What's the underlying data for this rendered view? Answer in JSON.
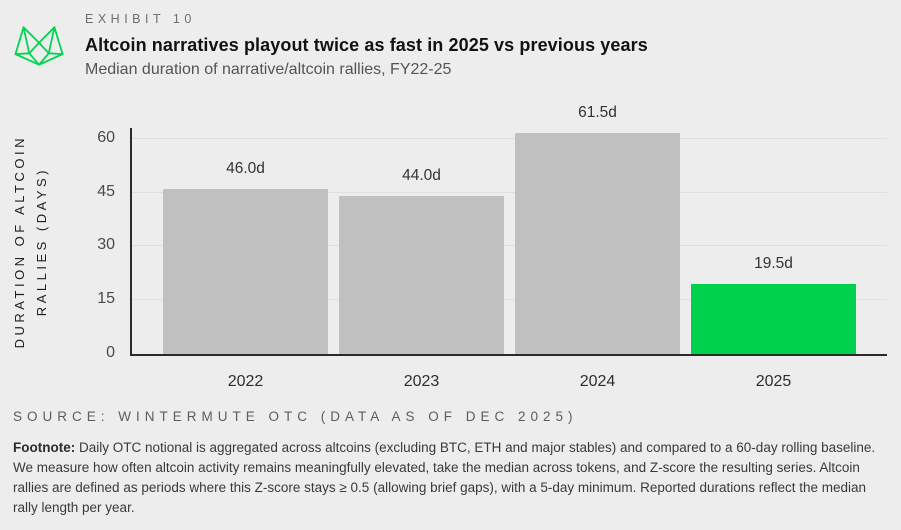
{
  "header": {
    "exhibit_label": "EXHIBIT 10",
    "title": "Altcoin narratives playout twice as fast in 2025 vs previous years",
    "subtitle": "Median duration of narrative/altcoin rallies, FY22-25"
  },
  "chart_data": {
    "type": "bar",
    "title": "Median duration of narrative/altcoin rallies, FY22-25",
    "categories": [
      "2022",
      "2023",
      "2024",
      "2025"
    ],
    "values": [
      46.0,
      44.0,
      61.5,
      19.5
    ],
    "value_labels": [
      "46.0d",
      "44.0d",
      "61.5d",
      "19.5d"
    ],
    "bar_colors": [
      "#c0c0c0",
      "#c0c0c0",
      "#c0c0c0",
      "#00d14d"
    ],
    "xlabel": "",
    "ylabel": "DURATION OF ALTCOIN RALLIES (DAYS)",
    "ylabel_lines": [
      "DURATION OF ALTCOIN",
      "RALLIES (DAYS)"
    ],
    "yticks": [
      0,
      15,
      30,
      45,
      60
    ],
    "ylim": [
      0,
      63
    ],
    "grid": true,
    "legend": false
  },
  "source": "SOURCE: WINTERMUTE OTC (DATA AS OF DEC 2025)",
  "footnote": {
    "label": "Footnote:",
    "text": " Daily OTC notional is aggregated across altcoins (excluding BTC, ETH and major stables) and compared to a 60-day rolling baseline. We measure how often altcoin activity remains meaningfully elevated, take the median across tokens, and Z-score the resulting series. Altcoin rallies are defined as periods where this Z-score stays ≥ 0.5 (allowing brief gaps), with a 5-day minimum. Reported durations reflect the median rally length per year."
  },
  "colors": {
    "background": "#ededed",
    "bar_gray": "#c0c0c0",
    "bar_green": "#00d14d",
    "logo_green": "#00d54f",
    "axis": "#2a2a2a",
    "gridline": "#e0e0e0"
  }
}
